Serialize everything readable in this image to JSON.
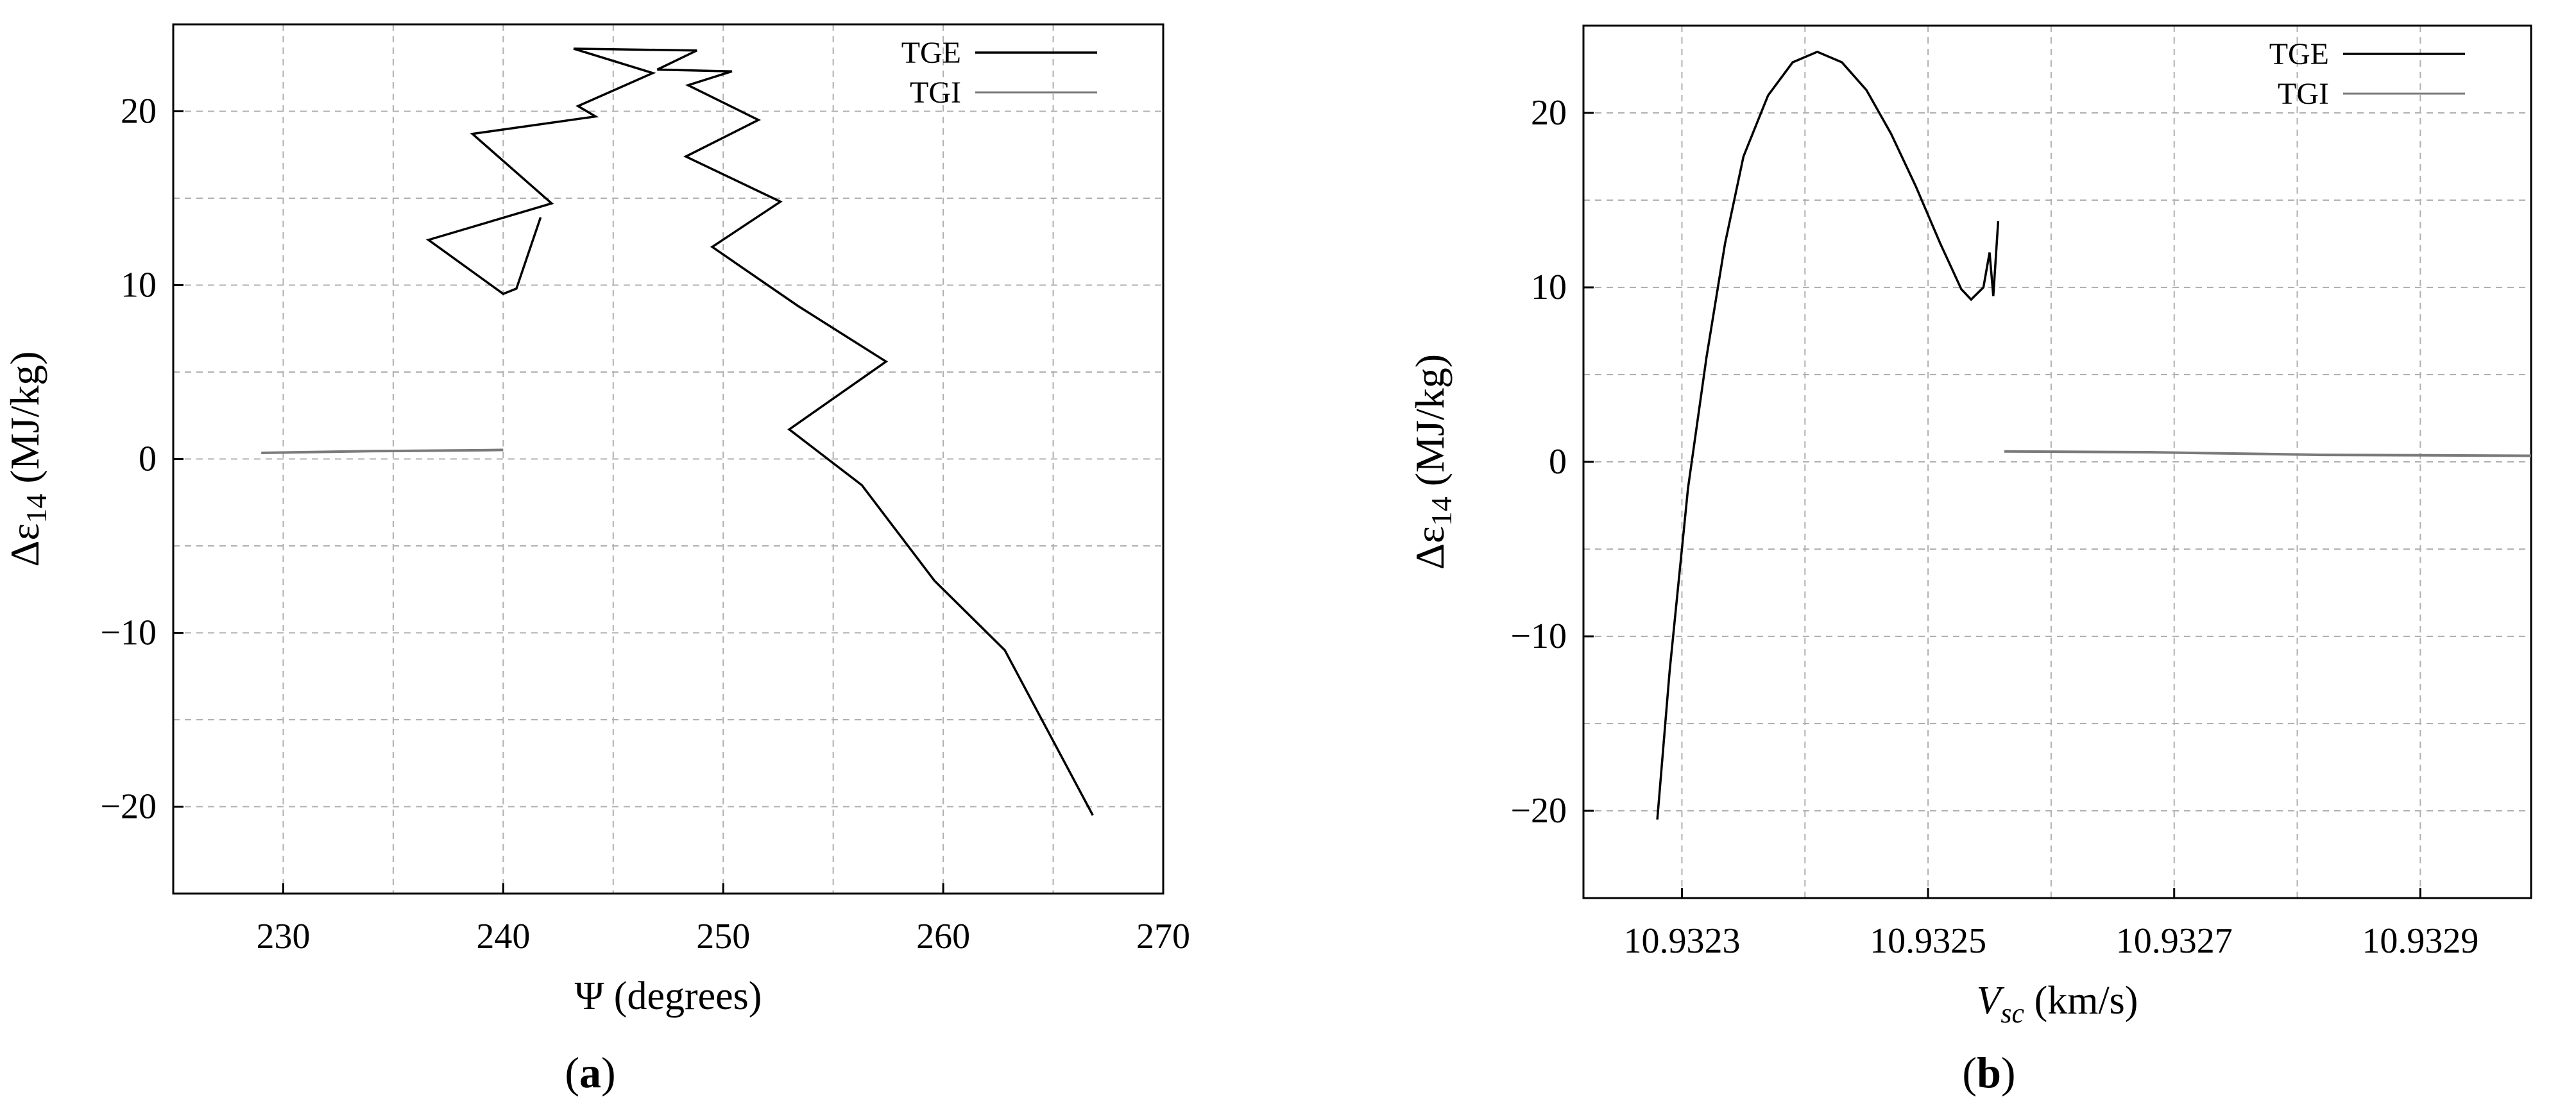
{
  "charts": [
    {
      "panel_label": "(a)",
      "legend": [
        {
          "label": "TGE",
          "color": "#000000"
        },
        {
          "label": "TGI",
          "color": "#7a7a7a"
        }
      ],
      "chart_data": {
        "type": "line",
        "xlabel": "Ψ (degrees)",
        "ylabel": "Δε14 (MJ/kg)",
        "xlim": [
          225,
          270
        ],
        "ylim": [
          -25,
          25
        ],
        "xticks": [
          230,
          240,
          250,
          260,
          270
        ],
        "yticks": [
          -20,
          -10,
          0,
          10,
          20
        ],
        "grid": true,
        "legend_position": "top-right",
        "series": [
          {
            "name": "TGE",
            "color": "#000000",
            "points": [
              [
                266.8,
                -20.5
              ],
              [
                262.8,
                -11.0
              ],
              [
                259.6,
                -7.0
              ],
              [
                256.3,
                -1.5
              ],
              [
                253.0,
                1.7
              ],
              [
                257.4,
                5.6
              ],
              [
                253.4,
                8.8
              ],
              [
                249.5,
                12.2
              ],
              [
                252.6,
                14.8
              ],
              [
                248.3,
                17.4
              ],
              [
                251.6,
                19.5
              ],
              [
                248.4,
                21.5
              ],
              [
                250.4,
                22.3
              ],
              [
                247.0,
                22.4
              ],
              [
                248.8,
                23.5
              ],
              [
                243.2,
                23.6
              ],
              [
                246.8,
                22.2
              ],
              [
                243.4,
                20.3
              ],
              [
                244.2,
                19.7
              ],
              [
                238.6,
                18.7
              ],
              [
                242.2,
                14.7
              ],
              [
                236.6,
                12.6
              ],
              [
                240.0,
                9.5
              ],
              [
                240.6,
                9.8
              ],
              [
                241.7,
                13.9
              ]
            ]
          },
          {
            "name": "TGI",
            "color": "#7a7a7a",
            "points": [
              [
                229.0,
                0.35
              ],
              [
                234.0,
                0.45
              ],
              [
                239.0,
                0.5
              ],
              [
                240.0,
                0.52
              ]
            ]
          }
        ]
      }
    },
    {
      "panel_label": "(b)",
      "legend": [
        {
          "label": "TGE",
          "color": "#000000"
        },
        {
          "label": "TGI",
          "color": "#7a7a7a"
        }
      ],
      "chart_data": {
        "type": "line",
        "xlabel": "Vsc (km/s)",
        "ylabel": "Δε14 (MJ/kg)",
        "xlim": [
          10.93222,
          10.93299
        ],
        "ylim": [
          -25,
          25
        ],
        "xticks": [
          10.9323,
          10.9325,
          10.9327,
          10.9329
        ],
        "xticklabels": [
          "10.9323",
          "10.9325",
          "10.9327",
          "10.9329"
        ],
        "yticks": [
          -20,
          -10,
          0,
          10,
          20
        ],
        "grid": true,
        "legend_position": "top-right",
        "series": [
          {
            "name": "TGE",
            "color": "#000000",
            "points": [
              [
                10.93228,
                -20.5
              ],
              [
                10.93229,
                -12.0
              ],
              [
                10.932305,
                -1.5
              ],
              [
                10.93232,
                6.0
              ],
              [
                10.932335,
                12.5
              ],
              [
                10.93235,
                17.5
              ],
              [
                10.93237,
                21.0
              ],
              [
                10.93239,
                22.9
              ],
              [
                10.93241,
                23.5
              ],
              [
                10.93243,
                22.9
              ],
              [
                10.93245,
                21.3
              ],
              [
                10.93247,
                18.8
              ],
              [
                10.93249,
                15.8
              ],
              [
                10.93251,
                12.5
              ],
              [
                10.932527,
                9.9
              ],
              [
                10.932535,
                9.3
              ],
              [
                10.932545,
                10.0
              ],
              [
                10.93255,
                12.0
              ],
              [
                10.932553,
                9.5
              ],
              [
                10.932557,
                13.8
              ]
            ]
          },
          {
            "name": "TGI",
            "color": "#7a7a7a",
            "points": [
              [
                10.932562,
                0.6
              ],
              [
                10.93268,
                0.55
              ],
              [
                10.93282,
                0.4
              ],
              [
                10.93299,
                0.35
              ]
            ]
          }
        ]
      }
    }
  ]
}
